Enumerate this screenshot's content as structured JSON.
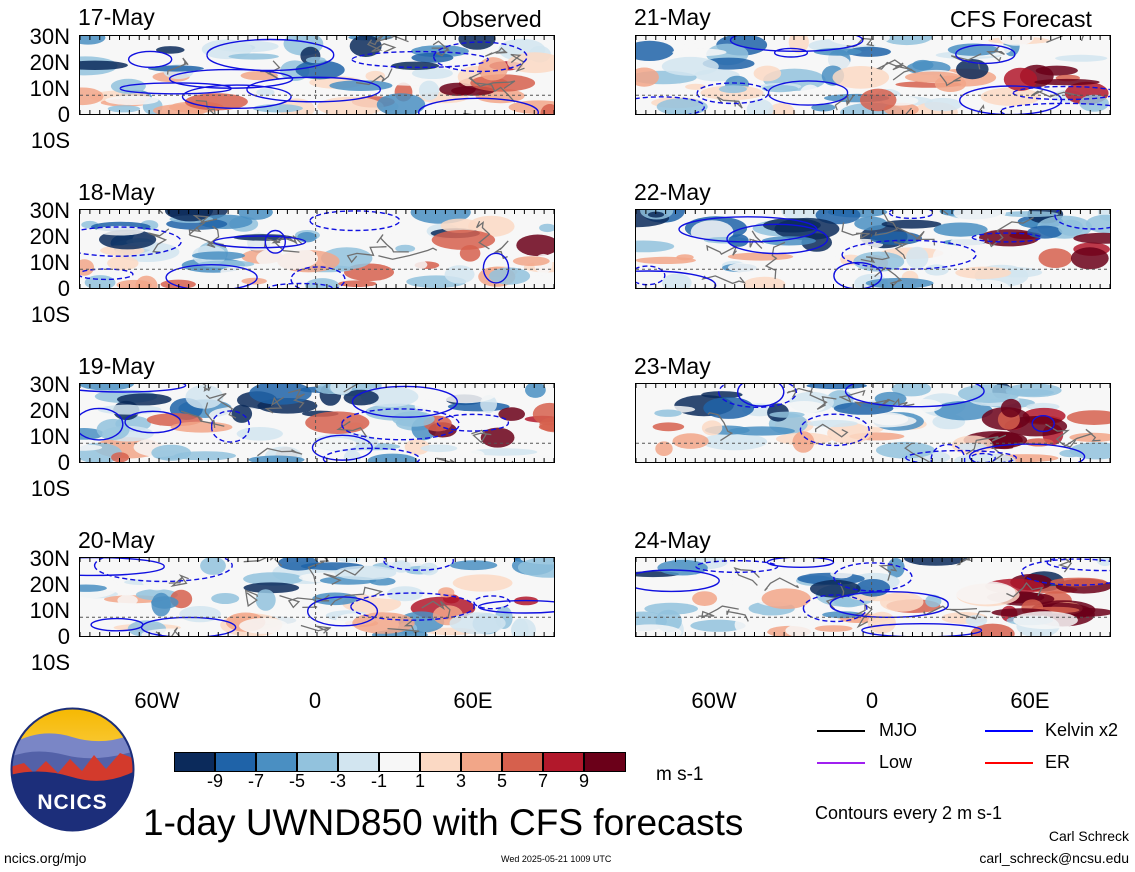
{
  "headers": {
    "observed": "Observed",
    "forecast": "CFS Forecast"
  },
  "observed_dates": [
    "17-May",
    "18-May",
    "19-May",
    "20-May"
  ],
  "forecast_dates": [
    "21-May",
    "22-May",
    "23-May",
    "24-May"
  ],
  "lat_labels": [
    "30N",
    "20N",
    "10N",
    "0",
    "10S"
  ],
  "lon_labels": [
    "60W",
    "0",
    "60E"
  ],
  "colorbar": {
    "labels": [
      "-9",
      "-7",
      "-5",
      "-3",
      "-1",
      "1",
      "3",
      "5",
      "7",
      "9"
    ],
    "colors": [
      "#0b2a5b",
      "#1f63a8",
      "#4a8fc2",
      "#92c2dd",
      "#d2e5f0",
      "#f7f7f7",
      "#fbd9c4",
      "#f2a688",
      "#d6604d",
      "#b2182b",
      "#6b0019"
    ],
    "unit": "m s-1"
  },
  "legend": {
    "items": [
      {
        "label": "MJO",
        "color": "#000000"
      },
      {
        "label": "Kelvin x2",
        "color": "#0000ff"
      },
      {
        "label": "Low",
        "color": "#a020f0"
      },
      {
        "label": "ER",
        "color": "#ff0000"
      }
    ],
    "contour_note": "Contours every 2 m s-1"
  },
  "title": "1-day UWND850 with CFS forecasts",
  "footer": {
    "url": "ncics.org/mjo",
    "timestamp": "Wed 2025-05-21 1009 UTC",
    "author": "Carl Schreck",
    "email": "carl_schreck@ncsu.edu"
  },
  "logo_text": "NCICS",
  "chart_data": {
    "type": "heatmap",
    "variable": "UWND850",
    "xlabels": [
      "60W",
      "0",
      "60E"
    ],
    "ylabels": [
      "30N",
      "20N",
      "10N",
      "0",
      "10S"
    ],
    "levels": [
      -9,
      -7,
      -5,
      -3,
      -1,
      1,
      3,
      5,
      7,
      9
    ],
    "unit": "m s-1"
  }
}
